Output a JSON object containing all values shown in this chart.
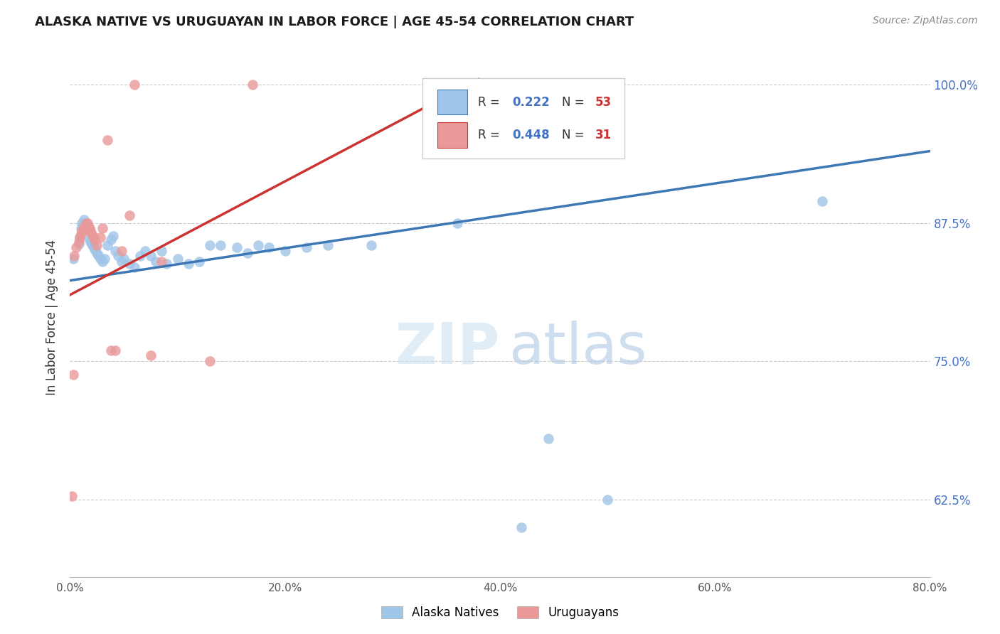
{
  "title": "ALASKA NATIVE VS URUGUAYAN IN LABOR FORCE | AGE 45-54 CORRELATION CHART",
  "source": "Source: ZipAtlas.com",
  "ylabel": "In Labor Force | Age 45-54",
  "xlim": [
    0.0,
    0.8
  ],
  "ylim": [
    0.555,
    1.025
  ],
  "xtick_labels": [
    "0.0%",
    "",
    "20.0%",
    "",
    "40.0%",
    "",
    "60.0%",
    "",
    "80.0%"
  ],
  "xtick_vals": [
    0.0,
    0.1,
    0.2,
    0.3,
    0.4,
    0.5,
    0.6,
    0.7,
    0.8
  ],
  "ytick_labels": [
    "62.5%",
    "75.0%",
    "87.5%",
    "100.0%"
  ],
  "ytick_vals": [
    0.625,
    0.75,
    0.875,
    1.0
  ],
  "alaska_color": "#9fc5e8",
  "uruguayan_color": "#ea9999",
  "line_alaska_color": "#3d78b5",
  "line_uruguayan_color": "#cc3333",
  "alaska_x": [
    0.003,
    0.008,
    0.009,
    0.01,
    0.011,
    0.013,
    0.015,
    0.016,
    0.017,
    0.018,
    0.019,
    0.02,
    0.021,
    0.022,
    0.023,
    0.025,
    0.026,
    0.028,
    0.03,
    0.032,
    0.035,
    0.038,
    0.04,
    0.042,
    0.045,
    0.048,
    0.05,
    0.055,
    0.06,
    0.065,
    0.07,
    0.075,
    0.08,
    0.085,
    0.09,
    0.1,
    0.11,
    0.12,
    0.13,
    0.14,
    0.155,
    0.165,
    0.175,
    0.185,
    0.2,
    0.22,
    0.24,
    0.28,
    0.36,
    0.42,
    0.445,
    0.5,
    0.7
  ],
  "alaska_y": [
    0.843,
    0.856,
    0.862,
    0.87,
    0.875,
    0.878,
    0.875,
    0.872,
    0.868,
    0.86,
    0.858,
    0.856,
    0.855,
    0.853,
    0.851,
    0.848,
    0.846,
    0.843,
    0.84,
    0.843,
    0.855,
    0.86,
    0.863,
    0.85,
    0.845,
    0.84,
    0.843,
    0.838,
    0.835,
    0.845,
    0.85,
    0.845,
    0.84,
    0.85,
    0.838,
    0.843,
    0.838,
    0.84,
    0.855,
    0.855,
    0.853,
    0.848,
    0.855,
    0.853,
    0.85,
    0.853,
    0.855,
    0.855,
    0.875,
    0.6,
    0.68,
    0.625,
    0.895
  ],
  "uruguayan_x": [
    0.002,
    0.003,
    0.004,
    0.006,
    0.008,
    0.009,
    0.01,
    0.011,
    0.012,
    0.014,
    0.015,
    0.016,
    0.017,
    0.018,
    0.019,
    0.02,
    0.022,
    0.023,
    0.025,
    0.028,
    0.03,
    0.035,
    0.038,
    0.042,
    0.048,
    0.055,
    0.06,
    0.075,
    0.085,
    0.13,
    0.17
  ],
  "uruguayan_y": [
    0.628,
    0.738,
    0.845,
    0.853,
    0.858,
    0.862,
    0.865,
    0.868,
    0.87,
    0.872,
    0.875,
    0.875,
    0.872,
    0.87,
    0.868,
    0.865,
    0.862,
    0.86,
    0.855,
    0.862,
    0.87,
    0.95,
    0.76,
    0.76,
    0.85,
    0.882,
    1.0,
    0.755,
    0.84,
    0.75,
    1.0
  ],
  "line_ak_x0": 0.0,
  "line_ak_x1": 0.8,
  "line_ak_y0": 0.823,
  "line_ak_y1": 0.94,
  "line_ur_x0": 0.0,
  "line_ur_x1": 0.38,
  "line_ur_y0": 0.81,
  "line_ur_y1": 1.005
}
